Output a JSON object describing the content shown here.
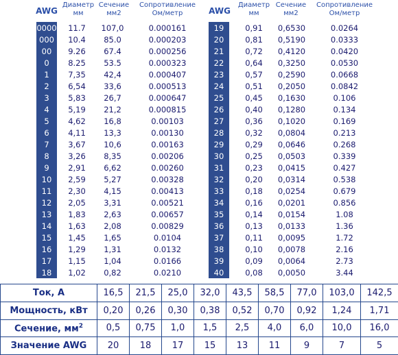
{
  "headers": {
    "awg": "AWG",
    "diameter": "Диаметр мм",
    "section": "Сечение мм2",
    "resistance": "Сопротивление Ом/метр"
  },
  "left_rows": [
    {
      "awg": "0000",
      "d": "11.7",
      "s": "107,0",
      "r": "0.000161"
    },
    {
      "awg": "000",
      "d": "10.4",
      "s": "85.0",
      "r": "0.000203"
    },
    {
      "awg": "00",
      "d": "9.26",
      "s": "67.4",
      "r": "0.000256"
    },
    {
      "awg": "0",
      "d": "8.25",
      "s": "53.5",
      "r": "0.000323"
    },
    {
      "awg": "1",
      "d": "7,35",
      "s": "42,4",
      "r": "0.000407"
    },
    {
      "awg": "2",
      "d": "6,54",
      "s": "33,6",
      "r": "0.000513"
    },
    {
      "awg": "3",
      "d": "5,83",
      "s": "26,7",
      "r": "0.000647"
    },
    {
      "awg": "4",
      "d": "5,19",
      "s": "21,2",
      "r": "0.000815"
    },
    {
      "awg": "5",
      "d": "4,62",
      "s": "16,8",
      "r": "0.00103"
    },
    {
      "awg": "6",
      "d": "4,11",
      "s": "13,3",
      "r": "0.00130"
    },
    {
      "awg": "7",
      "d": "3,67",
      "s": "10,6",
      "r": "0.00163"
    },
    {
      "awg": "8",
      "d": "3,26",
      "s": "8,35",
      "r": "0.00206"
    },
    {
      "awg": "9",
      "d": "2,91",
      "s": "6,62",
      "r": "0.00260"
    },
    {
      "awg": "10",
      "d": "2,59",
      "s": "5,27",
      "r": "0.00328"
    },
    {
      "awg": "11",
      "d": "2,30",
      "s": "4,15",
      "r": "0.00413"
    },
    {
      "awg": "12",
      "d": "2,05",
      "s": "3,31",
      "r": "0.00521"
    },
    {
      "awg": "13",
      "d": "1,83",
      "s": "2,63",
      "r": "0.00657"
    },
    {
      "awg": "14",
      "d": "1,63",
      "s": "2,08",
      "r": "0.00829"
    },
    {
      "awg": "15",
      "d": "1,45",
      "s": "1,65",
      "r": "0.0104"
    },
    {
      "awg": "16",
      "d": "1,29",
      "s": "1,31",
      "r": "0.0132"
    },
    {
      "awg": "17",
      "d": "1,15",
      "s": "1,04",
      "r": "0.0166"
    },
    {
      "awg": "18",
      "d": "1,02",
      "s": "0,82",
      "r": "0.0210"
    }
  ],
  "right_rows": [
    {
      "awg": "19",
      "d": "0,91",
      "s": "0,6530",
      "r": "0.0264"
    },
    {
      "awg": "20",
      "d": "0,81",
      "s": "0,5190",
      "r": "0.0333"
    },
    {
      "awg": "21",
      "d": "0,72",
      "s": "0,4120",
      "r": "0.0420"
    },
    {
      "awg": "22",
      "d": "0,64",
      "s": "0,3250",
      "r": "0.0530"
    },
    {
      "awg": "23",
      "d": "0,57",
      "s": "0,2590",
      "r": "0.0668"
    },
    {
      "awg": "24",
      "d": "0,51",
      "s": "0,2050",
      "r": "0.0842"
    },
    {
      "awg": "25",
      "d": "0,45",
      "s": "0,1630",
      "r": "0.106"
    },
    {
      "awg": "26",
      "d": "0,40",
      "s": "0,1280",
      "r": "0.134"
    },
    {
      "awg": "27",
      "d": "0,36",
      "s": "0,1020",
      "r": "0.169"
    },
    {
      "awg": "28",
      "d": "0,32",
      "s": "0,0804",
      "r": "0.213"
    },
    {
      "awg": "29",
      "d": "0,29",
      "s": "0,0646",
      "r": "0.268"
    },
    {
      "awg": "30",
      "d": "0,25",
      "s": "0,0503",
      "r": "0.339"
    },
    {
      "awg": "31",
      "d": "0,23",
      "s": "0,0415",
      "r": "0.427"
    },
    {
      "awg": "32",
      "d": "0,20",
      "s": "0,0314",
      "r": "0.538"
    },
    {
      "awg": "33",
      "d": "0,18",
      "s": "0,0254",
      "r": "0.679"
    },
    {
      "awg": "34",
      "d": "0,16",
      "s": "0,0201",
      "r": "0.856"
    },
    {
      "awg": "35",
      "d": "0,14",
      "s": "0,0154",
      "r": "1.08"
    },
    {
      "awg": "36",
      "d": "0,13",
      "s": "0,0133",
      "r": "1.36"
    },
    {
      "awg": "37",
      "d": "0,11",
      "s": "0,0095",
      "r": "1.72"
    },
    {
      "awg": "38",
      "d": "0,10",
      "s": "0,0078",
      "r": "2.16"
    },
    {
      "awg": "39",
      "d": "0,09",
      "s": "0,0064",
      "r": "2.73"
    },
    {
      "awg": "40",
      "d": "0,08",
      "s": "0,0050",
      "r": "3.44"
    }
  ],
  "calc": {
    "labels": {
      "current": "Ток, А",
      "power": "Мощность, кВт",
      "section": "Сечение, мм",
      "section_sup": "2",
      "awg": "Значение AWG"
    },
    "current": [
      "16,5",
      "21,5",
      "25,0",
      "32,0",
      "43,5",
      "58,5",
      "77,0",
      "103,0",
      "142,5"
    ],
    "power": [
      "0,20",
      "0,26",
      "0,30",
      "0,38",
      "0,52",
      "0,70",
      "0,92",
      "1,24",
      "1,71"
    ],
    "section": [
      "0,5",
      "0,75",
      "1,0",
      "1,5",
      "2,5",
      "4,0",
      "6,0",
      "10,0",
      "16,0"
    ],
    "awg": [
      "20",
      "18",
      "17",
      "15",
      "13",
      "11",
      "9",
      "7",
      "5"
    ]
  }
}
